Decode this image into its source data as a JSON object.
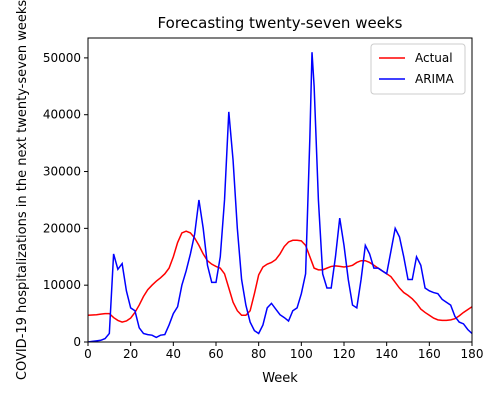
{
  "chart_data": {
    "type": "line",
    "title": "Forecasting twenty-seven weeks",
    "x_label": "Week",
    "y_label": "COVID-19 hospitalizations in the next twenty-seven weeks",
    "x": [
      0,
      2,
      4,
      6,
      8,
      10,
      12,
      14,
      16,
      18,
      20,
      22,
      24,
      26,
      28,
      30,
      32,
      34,
      36,
      38,
      40,
      42,
      44,
      46,
      48,
      50,
      52,
      54,
      56,
      58,
      60,
      62,
      64,
      66,
      68,
      70,
      72,
      74,
      76,
      78,
      80,
      82,
      84,
      86,
      88,
      90,
      92,
      94,
      96,
      98,
      100,
      102,
      104,
      105,
      106,
      108,
      110,
      112,
      114,
      116,
      118,
      120,
      122,
      124,
      126,
      128,
      130,
      132,
      134,
      136,
      138,
      140,
      142,
      144,
      146,
      148,
      150,
      152,
      154,
      156,
      158,
      160,
      162,
      164,
      166,
      168,
      170,
      172,
      174,
      176,
      178,
      180
    ],
    "series": [
      {
        "name": "Actual",
        "color": "#ff0000",
        "values": [
          4700,
          4750,
          4800,
          4900,
          5000,
          5000,
          4300,
          3800,
          3500,
          3700,
          4200,
          5200,
          6500,
          8000,
          9200,
          10000,
          10700,
          11300,
          12000,
          13000,
          15000,
          17500,
          19200,
          19500,
          19200,
          18300,
          17000,
          15500,
          14300,
          13700,
          13300,
          13000,
          12000,
          9500,
          7000,
          5500,
          4700,
          4700,
          5500,
          8500,
          11800,
          13200,
          13700,
          14000,
          14500,
          15500,
          16800,
          17600,
          17900,
          17900,
          17800,
          17000,
          15000,
          14000,
          13000,
          12700,
          12700,
          13000,
          13300,
          13400,
          13300,
          13200,
          13300,
          13500,
          14000,
          14300,
          14300,
          14000,
          13500,
          13000,
          12500,
          12000,
          11500,
          10500,
          9500,
          8700,
          8200,
          7600,
          6800,
          5800,
          5200,
          4700,
          4200,
          3900,
          3800,
          3800,
          3900,
          4100,
          4600,
          5200,
          5700,
          6200
        ]
      },
      {
        "name": "ARIMA",
        "color": "#0000ff",
        "values": [
          0,
          100,
          200,
          300,
          600,
          1500,
          15500,
          12800,
          13800,
          9000,
          6000,
          5500,
          2500,
          1500,
          1300,
          1200,
          800,
          1200,
          1300,
          3000,
          5000,
          6200,
          10000,
          12500,
          15500,
          19000,
          25000,
          20000,
          13500,
          10500,
          10500,
          15000,
          25000,
          40500,
          32000,
          20000,
          11000,
          6500,
          3500,
          2000,
          1500,
          3000,
          6000,
          6800,
          5800,
          4800,
          4300,
          3700,
          5500,
          6000,
          8500,
          12000,
          36000,
          51000,
          45000,
          25000,
          12000,
          9500,
          9500,
          15000,
          21800,
          17000,
          11000,
          6500,
          6000,
          11000,
          17000,
          15500,
          13000,
          13000,
          12500,
          12000,
          16000,
          20000,
          18500,
          15000,
          11000,
          11000,
          15000,
          13500,
          9500,
          9000,
          8700,
          8500,
          7500,
          7000,
          6500,
          4500,
          3500,
          3200,
          2200,
          1500
        ]
      }
    ],
    "xlim": [
      0,
      180
    ],
    "xticks": [
      0,
      20,
      40,
      60,
      80,
      100,
      120,
      140,
      160,
      180
    ],
    "ylim": [
      0,
      53500
    ],
    "yticks": [
      0,
      10000,
      20000,
      30000,
      40000,
      50000
    ],
    "legend": "upper right"
  }
}
